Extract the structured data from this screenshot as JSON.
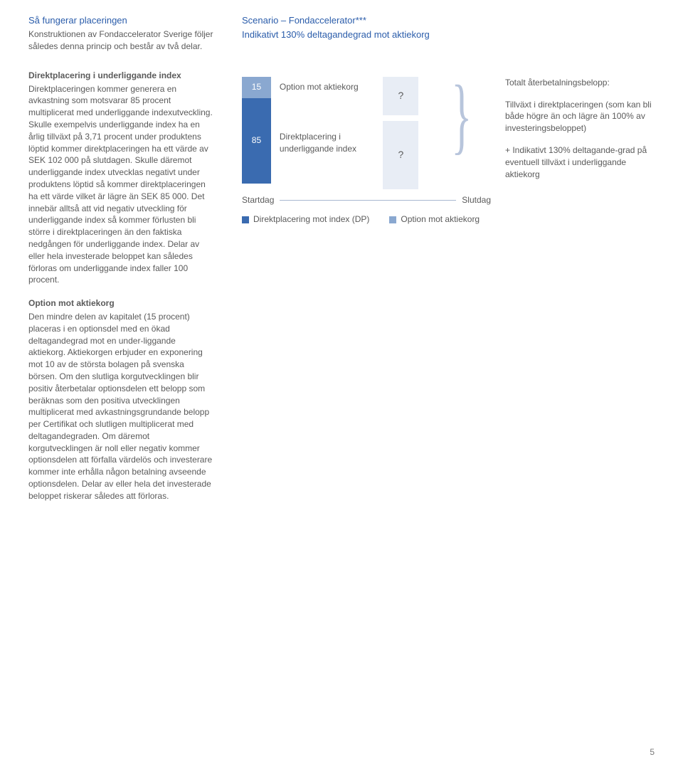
{
  "top": {
    "left_heading": "Så fungerar placeringen",
    "left_body": "Konstruktionen av Fondaccelerator Sverige följer således denna princip och består av två delar.",
    "right_line1": "Scenario – Fondaccelerator***",
    "right_line2": "Indikativt 130% deltagandegrad mot aktiekorg"
  },
  "left_sections": {
    "s1_heading": "Direktplacering i underliggande index",
    "s1_body": "Direktplaceringen kommer generera en avkastning som motsvarar 85 procent multiplicerat med underliggande indexutveckling. Skulle exempelvis underliggande index ha en årlig tillväxt på 3,71 procent under produktens löptid kommer direktplaceringen ha ett värde av SEK 102 000 på slutdagen. Skulle däremot underliggande index utvecklas negativt under produktens löptid så kommer direktplaceringen ha ett värde vilket är lägre än SEK 85 000. Det innebär alltså att vid negativ utveckling för underliggande index så kommer förlusten bli större i direktplaceringen än den faktiska nedgången för underliggande index. Delar av eller hela investerade beloppet kan således förloras om underliggande index faller 100 procent.",
    "s2_heading": "Option mot aktiekorg",
    "s2_body": "Den mindre delen av kapitalet (15 procent) placeras i en optionsdel med en ökad deltagandegrad mot en under-liggande aktiekorg. Aktiekorgen erbjuder en exponering mot 10 av de största bolagen på svenska börsen. Om den slutliga korgutvecklingen blir positiv återbetalar optionsdelen ett belopp som beräknas som den positiva utvecklingen multiplicerat med avkastningsgrundande belopp per Certifikat och slutligen multiplicerat med deltagandegraden. Om däremot korgutvecklingen är noll eller negativ kommer optionsdelen att förfalla värdelös och investerare kommer inte erhålla någon betalning avseende optionsdelen. Delar av eller hela det investerade beloppet riskerar således att förloras."
  },
  "chart": {
    "bar_top_value": "15",
    "bar_top_height": 30,
    "bar_top_color": "#8aa8d0",
    "bar_bottom_value": "85",
    "bar_bottom_height": 120,
    "bar_bottom_color": "#3a6bb0",
    "label_top": "Option mot aktiekorg",
    "label_bottom": "Direktplacering i underliggande index",
    "axis_left": "Startdag",
    "axis_right": "Slutdag",
    "legend1_color": "#3a6bb0",
    "legend1_text": "Direktplacering mot index (DP)",
    "legend2_color": "#8aa8d0",
    "legend2_text": "Option mot aktiekorg",
    "q_top_height": 54,
    "q_bottom_height": 96,
    "q_color": "#e8edf5",
    "q_text": "?"
  },
  "right_text": {
    "p1": "Totalt återbetalningsbelopp:",
    "p2": "Tillväxt i direktplaceringen (som kan bli både högre än och lägre än 100% av investeringsbeloppet)",
    "p3": "+ Indikativt 130% deltagande-grad på eventuell tillväxt i underliggande aktiekorg"
  },
  "page_number": "5",
  "colors": {
    "blue_heading": "#2a5caa",
    "body": "#5a5a5a",
    "axis": "#a8b8d0"
  }
}
